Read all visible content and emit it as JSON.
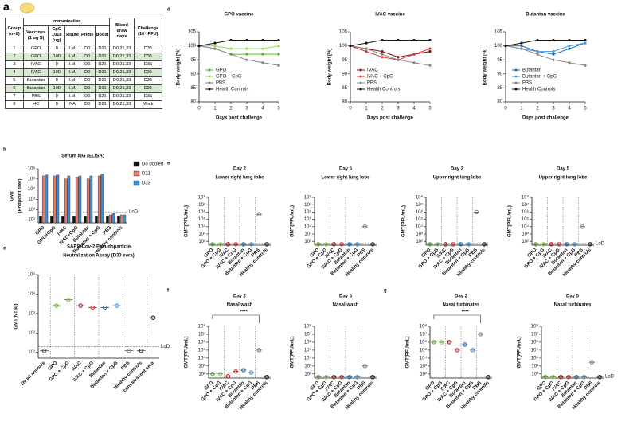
{
  "table": {
    "panel": "a",
    "span_header": "Immunization",
    "columns": [
      "Group (n=8)",
      "Vaccines (1 ug S)",
      "CpG 1018 (ug)",
      "Route",
      "Prime",
      "Boost",
      "Blood draw days",
      "Challenge (10⁴ PFU)"
    ],
    "rows": [
      [
        "1",
        "GPO",
        "0",
        "I.M.",
        "D0",
        "D21",
        "D0,21,33",
        "D35"
      ],
      [
        "2",
        "GPO",
        "100",
        "I.M.",
        "D0",
        "D21",
        "D0,21,33",
        "D35"
      ],
      [
        "3",
        "IVAC",
        "0",
        "I.M.",
        "D0",
        "D21",
        "D0,21,33",
        "D35"
      ],
      [
        "4",
        "IVAC",
        "100",
        "I.M.",
        "D0",
        "D21",
        "D0,21,33",
        "D35"
      ],
      [
        "5",
        "Butantan",
        "0",
        "I.M.",
        "D0",
        "D21",
        "D0,21,33",
        "D35"
      ],
      [
        "6",
        "Butantan",
        "100",
        "I.M.",
        "D0",
        "D21",
        "D0,21,33",
        "D35"
      ],
      [
        "7",
        "PBS",
        "0",
        "I.M.",
        "D0",
        "D21",
        "D0,21,33",
        "D35"
      ],
      [
        "8",
        "HC",
        "0",
        "NA",
        "D0",
        "D21",
        "D0,21,33",
        "Mock"
      ]
    ],
    "shade": "#d9ead3"
  },
  "chart_data": [
    {
      "type": "bar",
      "panel": "b",
      "title": [
        "Serum IgG (ELISA)"
      ],
      "ylabel": [
        "GMT",
        "(Endpoint titer)"
      ],
      "log": true,
      "ylim": [
        5,
        1000000
      ],
      "yticks": [
        {
          "value": 10,
          "label": "10¹"
        },
        {
          "value": 100,
          "label": "10²"
        },
        {
          "value": 1000,
          "label": "10³"
        },
        {
          "value": 10000,
          "label": "10⁴"
        },
        {
          "value": 100000,
          "label": "10⁵"
        },
        {
          "value": 1000000,
          "label": "10⁶"
        }
      ],
      "categories": [
        "GPO",
        "GPO+CpG",
        "IVAC",
        "IVAC+CpG",
        "Butantan",
        "Butantan + CpG",
        "PBS",
        "Healthy controls"
      ],
      "series": [
        {
          "name": "D0 pooled",
          "color": "#111111",
          "values": [
            20,
            20,
            20,
            20,
            20,
            20,
            20,
            20
          ]
        },
        {
          "name": "D21",
          "color": "#e8786a",
          "values": [
            200000,
            200000,
            100000,
            150000,
            100000,
            200000,
            30,
            30
          ]
        },
        {
          "name": "D33",
          "color": "#3a8fd8",
          "values": [
            250000,
            250000,
            200000,
            200000,
            200000,
            300000,
            40,
            30
          ]
        }
      ],
      "lod": 60,
      "lod_label": "LoD",
      "legend": "right"
    },
    {
      "type": "dot",
      "panel": "c",
      "title": [
        "SARS-Cov-2 Pseudoparticle",
        "Neutralization Assay (D33 sera)"
      ],
      "ylabel": [
        "GMT(NT50)"
      ],
      "log": true,
      "ylim": [
        5,
        100000
      ],
      "yticks": [
        {
          "value": 10,
          "label": "10¹"
        },
        {
          "value": 100,
          "label": "10²"
        },
        {
          "value": 1000,
          "label": "10³"
        },
        {
          "value": 10000,
          "label": "10⁴"
        },
        {
          "value": 100000,
          "label": "10⁵"
        }
      ],
      "categories": [
        "D0 all animals",
        "GPO",
        "GPO + CpG",
        "IVAC",
        "IVAC + CpG",
        "Butantan",
        "Butantan + CpG",
        "PBS",
        "Healthy controls",
        "convalescent sera"
      ],
      "values": [
        12,
        2500,
        5000,
        2500,
        2000,
        2000,
        2500,
        12,
        12,
        600
      ],
      "colors": [
        "#555555",
        "#5cb82e",
        "#8ad04a",
        "#b21a1a",
        "#e03030",
        "#1f6fc0",
        "#4a9ae0",
        "#888888",
        "#222222",
        "#222222"
      ],
      "lod": 20,
      "lod_label": "LoD"
    },
    {
      "type": "line",
      "panel": "d",
      "title": [
        "GPO vaccine"
      ],
      "ylabel": [
        "Body weight [%]"
      ],
      "xlabel": "Days post challenge",
      "x": [
        0,
        1,
        2,
        3,
        4,
        5
      ],
      "xlim": [
        0,
        5
      ],
      "xticks": [
        0,
        1,
        2,
        3,
        4,
        5
      ],
      "ylim": [
        80,
        105
      ],
      "yticks": [
        80,
        85,
        90,
        95,
        100,
        105
      ],
      "series": [
        {
          "name": "GPO",
          "color": "#5cb82e",
          "values": [
            100,
            99,
            97,
            97,
            97,
            97
          ]
        },
        {
          "name": "GPO + CpG",
          "color": "#9ad85a",
          "values": [
            100,
            100,
            99,
            99,
            99,
            100
          ]
        },
        {
          "name": "PBS",
          "color": "#888888",
          "values": [
            100,
            99,
            97,
            95,
            94,
            93
          ]
        },
        {
          "name": "Health Controls",
          "color": "#111111",
          "values": [
            100,
            101,
            102,
            102,
            102,
            102
          ]
        }
      ]
    },
    {
      "type": "line",
      "title": [
        "IVAC vaccine"
      ],
      "ylabel": [
        "Body weight [%]"
      ],
      "xlabel": "Days post challenge",
      "x": [
        0,
        1,
        2,
        3,
        4,
        5
      ],
      "xlim": [
        0,
        5
      ],
      "xticks": [
        0,
        1,
        2,
        3,
        4,
        5
      ],
      "ylim": [
        80,
        105
      ],
      "yticks": [
        80,
        85,
        90,
        95,
        100,
        105
      ],
      "series": [
        {
          "name": "IVAC",
          "color": "#8b1010",
          "values": [
            100,
            99,
            98,
            96,
            97,
            98
          ]
        },
        {
          "name": "IVAC + CpG",
          "color": "#e03030",
          "values": [
            100,
            98,
            96,
            95,
            97,
            99
          ]
        },
        {
          "name": "PBS",
          "color": "#888888",
          "values": [
            100,
            99,
            97,
            95,
            94,
            93
          ]
        },
        {
          "name": "Health Controls",
          "color": "#111111",
          "values": [
            100,
            101,
            102,
            102,
            102,
            102
          ]
        }
      ]
    },
    {
      "type": "line",
      "title": [
        "Butantan vaccine"
      ],
      "ylabel": [
        "Body weight [%]"
      ],
      "xlabel": "Days post challenge",
      "x": [
        0,
        1,
        2,
        3,
        4,
        5
      ],
      "xlim": [
        0,
        5
      ],
      "xticks": [
        0,
        1,
        2,
        3,
        4,
        5
      ],
      "ylim": [
        80,
        105
      ],
      "yticks": [
        80,
        85,
        90,
        95,
        100,
        105
      ],
      "series": [
        {
          "name": "Butantan",
          "color": "#1f6fc0",
          "values": [
            100,
            100,
            98,
            97,
            99,
            101
          ]
        },
        {
          "name": "Butantan + CpG",
          "color": "#4a9ae0",
          "values": [
            100,
            99,
            98,
            98,
            100,
            101
          ]
        },
        {
          "name": "PBS",
          "color": "#888888",
          "values": [
            100,
            99,
            97,
            95,
            94,
            93
          ]
        },
        {
          "name": "Health Controls",
          "color": "#111111",
          "values": [
            100,
            101,
            102,
            102,
            102,
            102
          ]
        }
      ]
    },
    {
      "type": "dot",
      "panel": "e",
      "title": [
        "Day 2",
        "Lower right lung lobe"
      ],
      "title_color": "#1b3fe0",
      "ylabel": [
        "GMT(PFU/mL)"
      ],
      "log": true,
      "ylim": [
        30,
        100000000
      ],
      "yticks": [
        {
          "value": 100,
          "label": "10²"
        },
        {
          "value": 1000,
          "label": "10³"
        },
        {
          "value": 10000,
          "label": "10⁴"
        },
        {
          "value": 100000,
          "label": "10⁵"
        },
        {
          "value": 1000000,
          "label": "10⁶"
        },
        {
          "value": 10000000,
          "label": "10⁷"
        },
        {
          "value": 100000000,
          "label": "10⁸"
        }
      ],
      "categories": [
        "GPO",
        "GPO + CpG",
        "IVAC",
        "IVAC + CpG",
        "Butantan",
        "Butantan + CpG",
        "PBS",
        "Healthy controls"
      ],
      "values": [
        40,
        40,
        40,
        40,
        40,
        40,
        500000,
        40
      ],
      "colors": [
        "#5cb82e",
        "#8ad04a",
        "#b21a1a",
        "#e03030",
        "#1f6fc0",
        "#4a9ae0",
        "#888888",
        "#222222"
      ],
      "lod": 50
    },
    {
      "type": "dot",
      "title": [
        "Day 5",
        "Lower right lung lobe"
      ],
      "title_color": "#1b3fe0",
      "ylabel": [
        "GMT(PFU/mL)"
      ],
      "log": true,
      "ylim": [
        30,
        100000000
      ],
      "yticks": [
        {
          "value": 100,
          "label": "10²"
        },
        {
          "value": 1000,
          "label": "10³"
        },
        {
          "value": 10000,
          "label": "10⁴"
        },
        {
          "value": 100000,
          "label": "10⁵"
        },
        {
          "value": 1000000,
          "label": "10⁶"
        },
        {
          "value": 10000000,
          "label": "10⁷"
        },
        {
          "value": 100000000,
          "label": "10⁸"
        }
      ],
      "categories": [
        "GPO",
        "GPO + CpG",
        "IVAC",
        "IVAC + CpG",
        "Butantan",
        "Butantan + CpG",
        "PBS",
        "Healthy controls"
      ],
      "values": [
        40,
        40,
        40,
        40,
        40,
        40,
        10000,
        40
      ],
      "colors": [
        "#5cb82e",
        "#8ad04a",
        "#b21a1a",
        "#e03030",
        "#1f6fc0",
        "#4a9ae0",
        "#888888",
        "#222222"
      ],
      "lod": 50
    },
    {
      "type": "dot",
      "title": [
        "Day 2",
        "Upper right lung lobe"
      ],
      "title_color": "#111111",
      "ylabel": [
        "GMT(PFU/mL)"
      ],
      "log": true,
      "ylim": [
        30,
        100000000
      ],
      "yticks": [
        {
          "value": 100,
          "label": "10²"
        },
        {
          "value": 1000,
          "label": "10³"
        },
        {
          "value": 10000,
          "label": "10⁴"
        },
        {
          "value": 100000,
          "label": "10⁵"
        },
        {
          "value": 1000000,
          "label": "10⁶"
        },
        {
          "value": 10000000,
          "label": "10⁷"
        },
        {
          "value": 100000000,
          "label": "10⁸"
        }
      ],
      "categories": [
        "GPO",
        "GPO + CpG",
        "IVAC",
        "IVAC + CpG",
        "Butantan",
        "Butantan + CpG",
        "PBS",
        "Healthy controls"
      ],
      "values": [
        40,
        40,
        40,
        40,
        40,
        40,
        1000000,
        40
      ],
      "colors": [
        "#5cb82e",
        "#8ad04a",
        "#b21a1a",
        "#e03030",
        "#1f6fc0",
        "#4a9ae0",
        "#888888",
        "#222222"
      ],
      "lod": 50
    },
    {
      "type": "dot",
      "title": [
        "Day 5",
        "Upper right lung lobe"
      ],
      "title_color": "#111111",
      "ylabel": [
        "GMT(PFU/mL)"
      ],
      "log": true,
      "ylim": [
        30,
        100000000
      ],
      "yticks": [
        {
          "value": 100,
          "label": "10²"
        },
        {
          "value": 1000,
          "label": "10³"
        },
        {
          "value": 10000,
          "label": "10⁴"
        },
        {
          "value": 100000,
          "label": "10⁵"
        },
        {
          "value": 1000000,
          "label": "10⁶"
        },
        {
          "value": 10000000,
          "label": "10⁷"
        },
        {
          "value": 100000000,
          "label": "10⁸"
        }
      ],
      "categories": [
        "GPO",
        "GPO + CpG",
        "IVAC",
        "IVAC + CpG",
        "Butantan",
        "Butantan + CpG",
        "PBS",
        "Healthy controls"
      ],
      "values": [
        40,
        40,
        40,
        40,
        40,
        40,
        10000,
        40
      ],
      "colors": [
        "#5cb82e",
        "#8ad04a",
        "#b21a1a",
        "#e03030",
        "#1f6fc0",
        "#4a9ae0",
        "#888888",
        "#222222"
      ],
      "lod": 50,
      "lod_label": "LoD"
    },
    {
      "type": "dot",
      "panel": "f",
      "title": [
        "Day 2",
        "Nasal wash"
      ],
      "title_color": "#e8211c",
      "ylabel": [
        "GMT(PFU/mL)"
      ],
      "log": true,
      "ylim": [
        30,
        100000000
      ],
      "yticks": [
        {
          "value": 100,
          "label": "10²"
        },
        {
          "value": 1000,
          "label": "10³"
        },
        {
          "value": 10000,
          "label": "10⁴"
        },
        {
          "value": 100000,
          "label": "10⁵"
        },
        {
          "value": 1000000,
          "label": "10⁶"
        },
        {
          "value": 10000000,
          "label": "10⁷"
        },
        {
          "value": 100000000,
          "label": "10⁸"
        }
      ],
      "categories": [
        "GPO",
        "GPO + CpG",
        "IVAC",
        "IVAC + CpG",
        "Butantan",
        "Butantan + CpG",
        "PBS",
        "Healthy controls"
      ],
      "values": [
        100,
        100,
        50,
        200,
        300,
        150,
        100000,
        40
      ],
      "colors": [
        "#5cb82e",
        "#8ad04a",
        "#b21a1a",
        "#e03030",
        "#1f6fc0",
        "#4a9ae0",
        "#888888",
        "#222222"
      ],
      "lod": 50,
      "annotation": "****"
    },
    {
      "type": "dot",
      "title": [
        "Day 5",
        "Nasal wash"
      ],
      "title_color": "#e8211c",
      "ylabel": [
        "GMT(PFU/mL)"
      ],
      "log": true,
      "ylim": [
        30,
        100000000
      ],
      "yticks": [
        {
          "value": 100,
          "label": "10²"
        },
        {
          "value": 1000,
          "label": "10³"
        },
        {
          "value": 10000,
          "label": "10⁴"
        },
        {
          "value": 100000,
          "label": "10⁵"
        },
        {
          "value": 1000000,
          "label": "10⁶"
        },
        {
          "value": 10000000,
          "label": "10⁷"
        },
        {
          "value": 100000000,
          "label": "10⁸"
        }
      ],
      "categories": [
        "GPO",
        "GPO + CpG",
        "IVAC",
        "IVAC + CpG",
        "Butantan",
        "Butantan + CpG",
        "PBS",
        "Healthy controls"
      ],
      "values": [
        40,
        40,
        40,
        40,
        40,
        40,
        1000,
        40
      ],
      "colors": [
        "#5cb82e",
        "#8ad04a",
        "#b21a1a",
        "#e03030",
        "#1f6fc0",
        "#4a9ae0",
        "#888888",
        "#222222"
      ],
      "lod": 50
    },
    {
      "type": "dot",
      "panel": "g",
      "title": [
        "Day 2",
        "Nasal turbinates"
      ],
      "title_color": "#f39a1f",
      "ylabel": [
        "GMT(PFU/mL)"
      ],
      "log": true,
      "ylim": [
        30,
        100000000
      ],
      "yticks": [
        {
          "value": 100,
          "label": "10²"
        },
        {
          "value": 1000,
          "label": "10³"
        },
        {
          "value": 10000,
          "label": "10⁴"
        },
        {
          "value": 100000,
          "label": "10⁵"
        },
        {
          "value": 1000000,
          "label": "10⁶"
        },
        {
          "value": 10000000,
          "label": "10⁷"
        },
        {
          "value": 100000000,
          "label": "10⁸"
        }
      ],
      "categories": [
        "GPO",
        "GPO + CpG",
        "IVAC",
        "IVAC + CpG",
        "Butantan",
        "Butantan + CpG",
        "PBS",
        "Healthy controls"
      ],
      "values": [
        1000000,
        1000000,
        1000000,
        100000,
        500000,
        100000,
        10000000,
        40
      ],
      "colors": [
        "#5cb82e",
        "#8ad04a",
        "#b21a1a",
        "#e03030",
        "#1f6fc0",
        "#4a9ae0",
        "#888888",
        "#222222"
      ],
      "lod": 50,
      "annotation": "****"
    },
    {
      "type": "dot",
      "title": [
        "Day 5",
        "Nasal turbinates"
      ],
      "title_color": "#f39a1f",
      "ylabel": [
        "GMT(PFU/mL)"
      ],
      "log": true,
      "ylim": [
        30,
        100000000
      ],
      "yticks": [
        {
          "value": 100,
          "label": "10²"
        },
        {
          "value": 1000,
          "label": "10³"
        },
        {
          "value": 10000,
          "label": "10⁴"
        },
        {
          "value": 100000,
          "label": "10⁵"
        },
        {
          "value": 1000000,
          "label": "10⁶"
        },
        {
          "value": 10000000,
          "label": "10⁷"
        },
        {
          "value": 100000000,
          "label": "10⁸"
        }
      ],
      "categories": [
        "GPO",
        "GPO + CpG",
        "IVAC",
        "IVAC + CpG",
        "Butantan",
        "Butantan + CpG",
        "PBS",
        "Healthy controls"
      ],
      "values": [
        40,
        40,
        40,
        40,
        40,
        40,
        3000,
        40
      ],
      "colors": [
        "#5cb82e",
        "#8ad04a",
        "#b21a1a",
        "#e03030",
        "#1f6fc0",
        "#4a9ae0",
        "#888888",
        "#222222"
      ],
      "lod": 50,
      "lod_label": "LoD"
    }
  ]
}
